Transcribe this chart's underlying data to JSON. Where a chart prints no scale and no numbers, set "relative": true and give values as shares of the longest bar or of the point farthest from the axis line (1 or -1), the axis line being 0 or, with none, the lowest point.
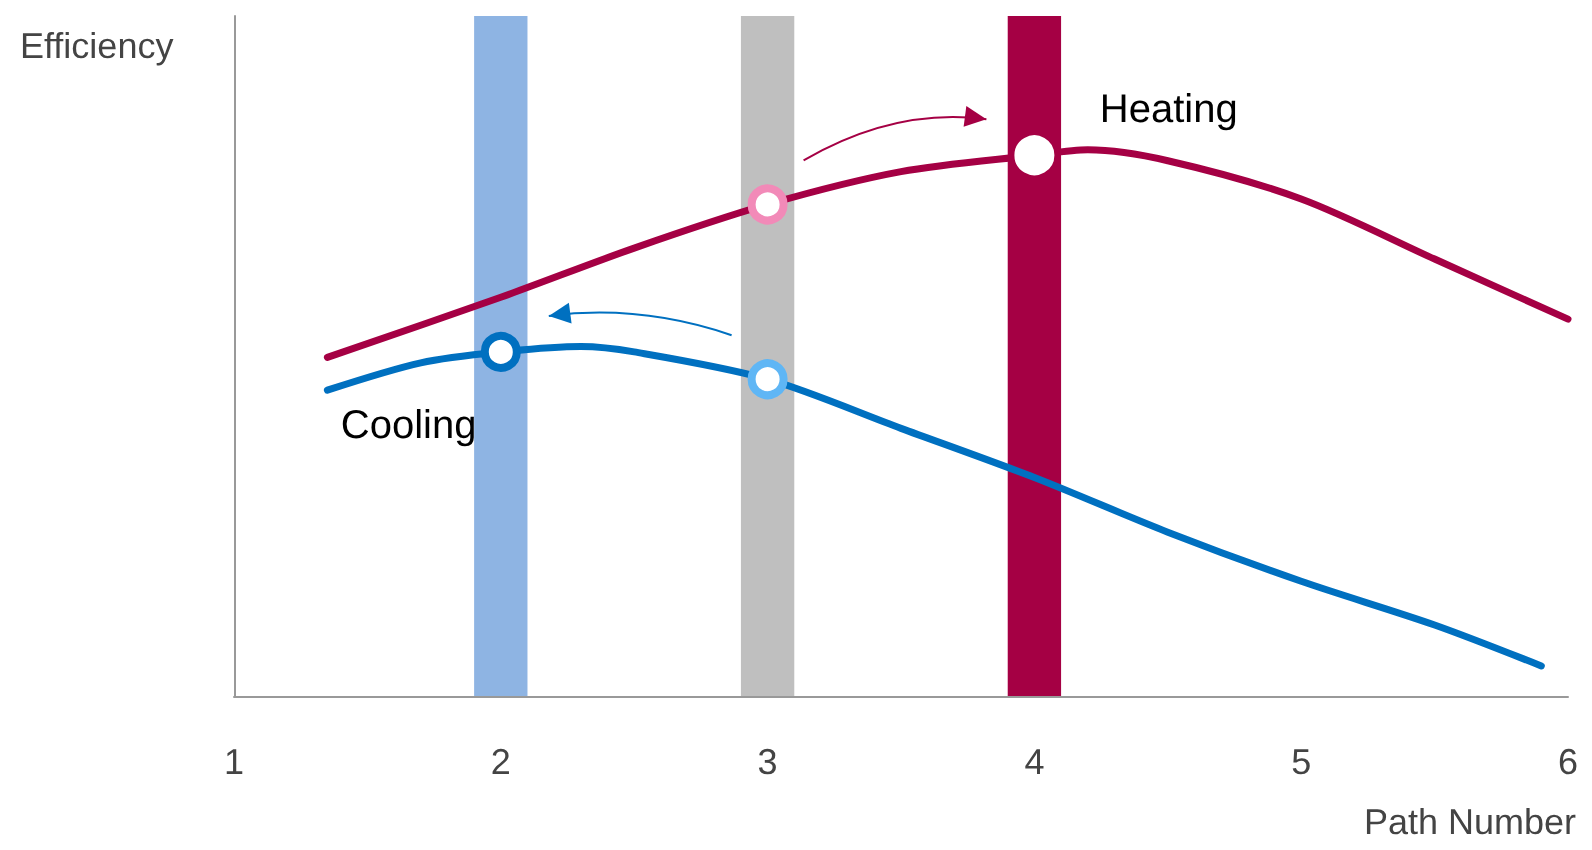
{
  "chart_data": {
    "type": "line",
    "relative": true,
    "xlabel": "Path Number",
    "ylabel": "Efficiency",
    "xlim": [
      1,
      6
    ],
    "xticks": [
      1,
      2,
      3,
      4,
      5,
      6
    ],
    "grid": false,
    "legend": false,
    "marker": "none",
    "line_style": "solid",
    "bands": [
      {
        "axis": "x",
        "from": 1.9,
        "to": 2.1,
        "color": "#8eb4e3"
      },
      {
        "axis": "x",
        "from": 2.9,
        "to": 3.1,
        "color": "#bfbfbf"
      },
      {
        "axis": "x",
        "from": 3.9,
        "to": 4.1,
        "color": "#a50044"
      }
    ],
    "series": [
      {
        "name": "Heating",
        "color": "#a50044",
        "x": [
          1.35,
          2,
          2.5,
          3,
          3.5,
          4,
          4.2,
          4.5,
          5,
          5.5,
          6
        ],
        "values": [
          0.62,
          0.73,
          0.82,
          0.9,
          0.96,
          0.99,
          1,
          0.98,
          0.91,
          0.8,
          0.69
        ]
      },
      {
        "name": "Cooling",
        "color": "#0070c0",
        "x": [
          1.35,
          1.7,
          2,
          2.3,
          2.5,
          3,
          3.5,
          4,
          4.5,
          5,
          5.5,
          5.9
        ],
        "values": [
          0.56,
          0.61,
          0.63,
          0.64,
          0.63,
          0.58,
          0.49,
          0.4,
          0.3,
          0.21,
          0.13,
          0.055
        ]
      },
      {
        "type": "scatter",
        "x": [
          3,
          4
        ],
        "values": [
          0.9,
          0.99
        ],
        "colors": [
          "#f28ab8",
          "#ffffff"
        ],
        "marker": "circle"
      },
      {
        "type": "scatter",
        "x": [
          2,
          3
        ],
        "values": [
          0.63,
          0.58
        ],
        "colors": [
          "#0070c0",
          "#5fb6f5"
        ],
        "marker": "circle"
      }
    ]
  }
}
